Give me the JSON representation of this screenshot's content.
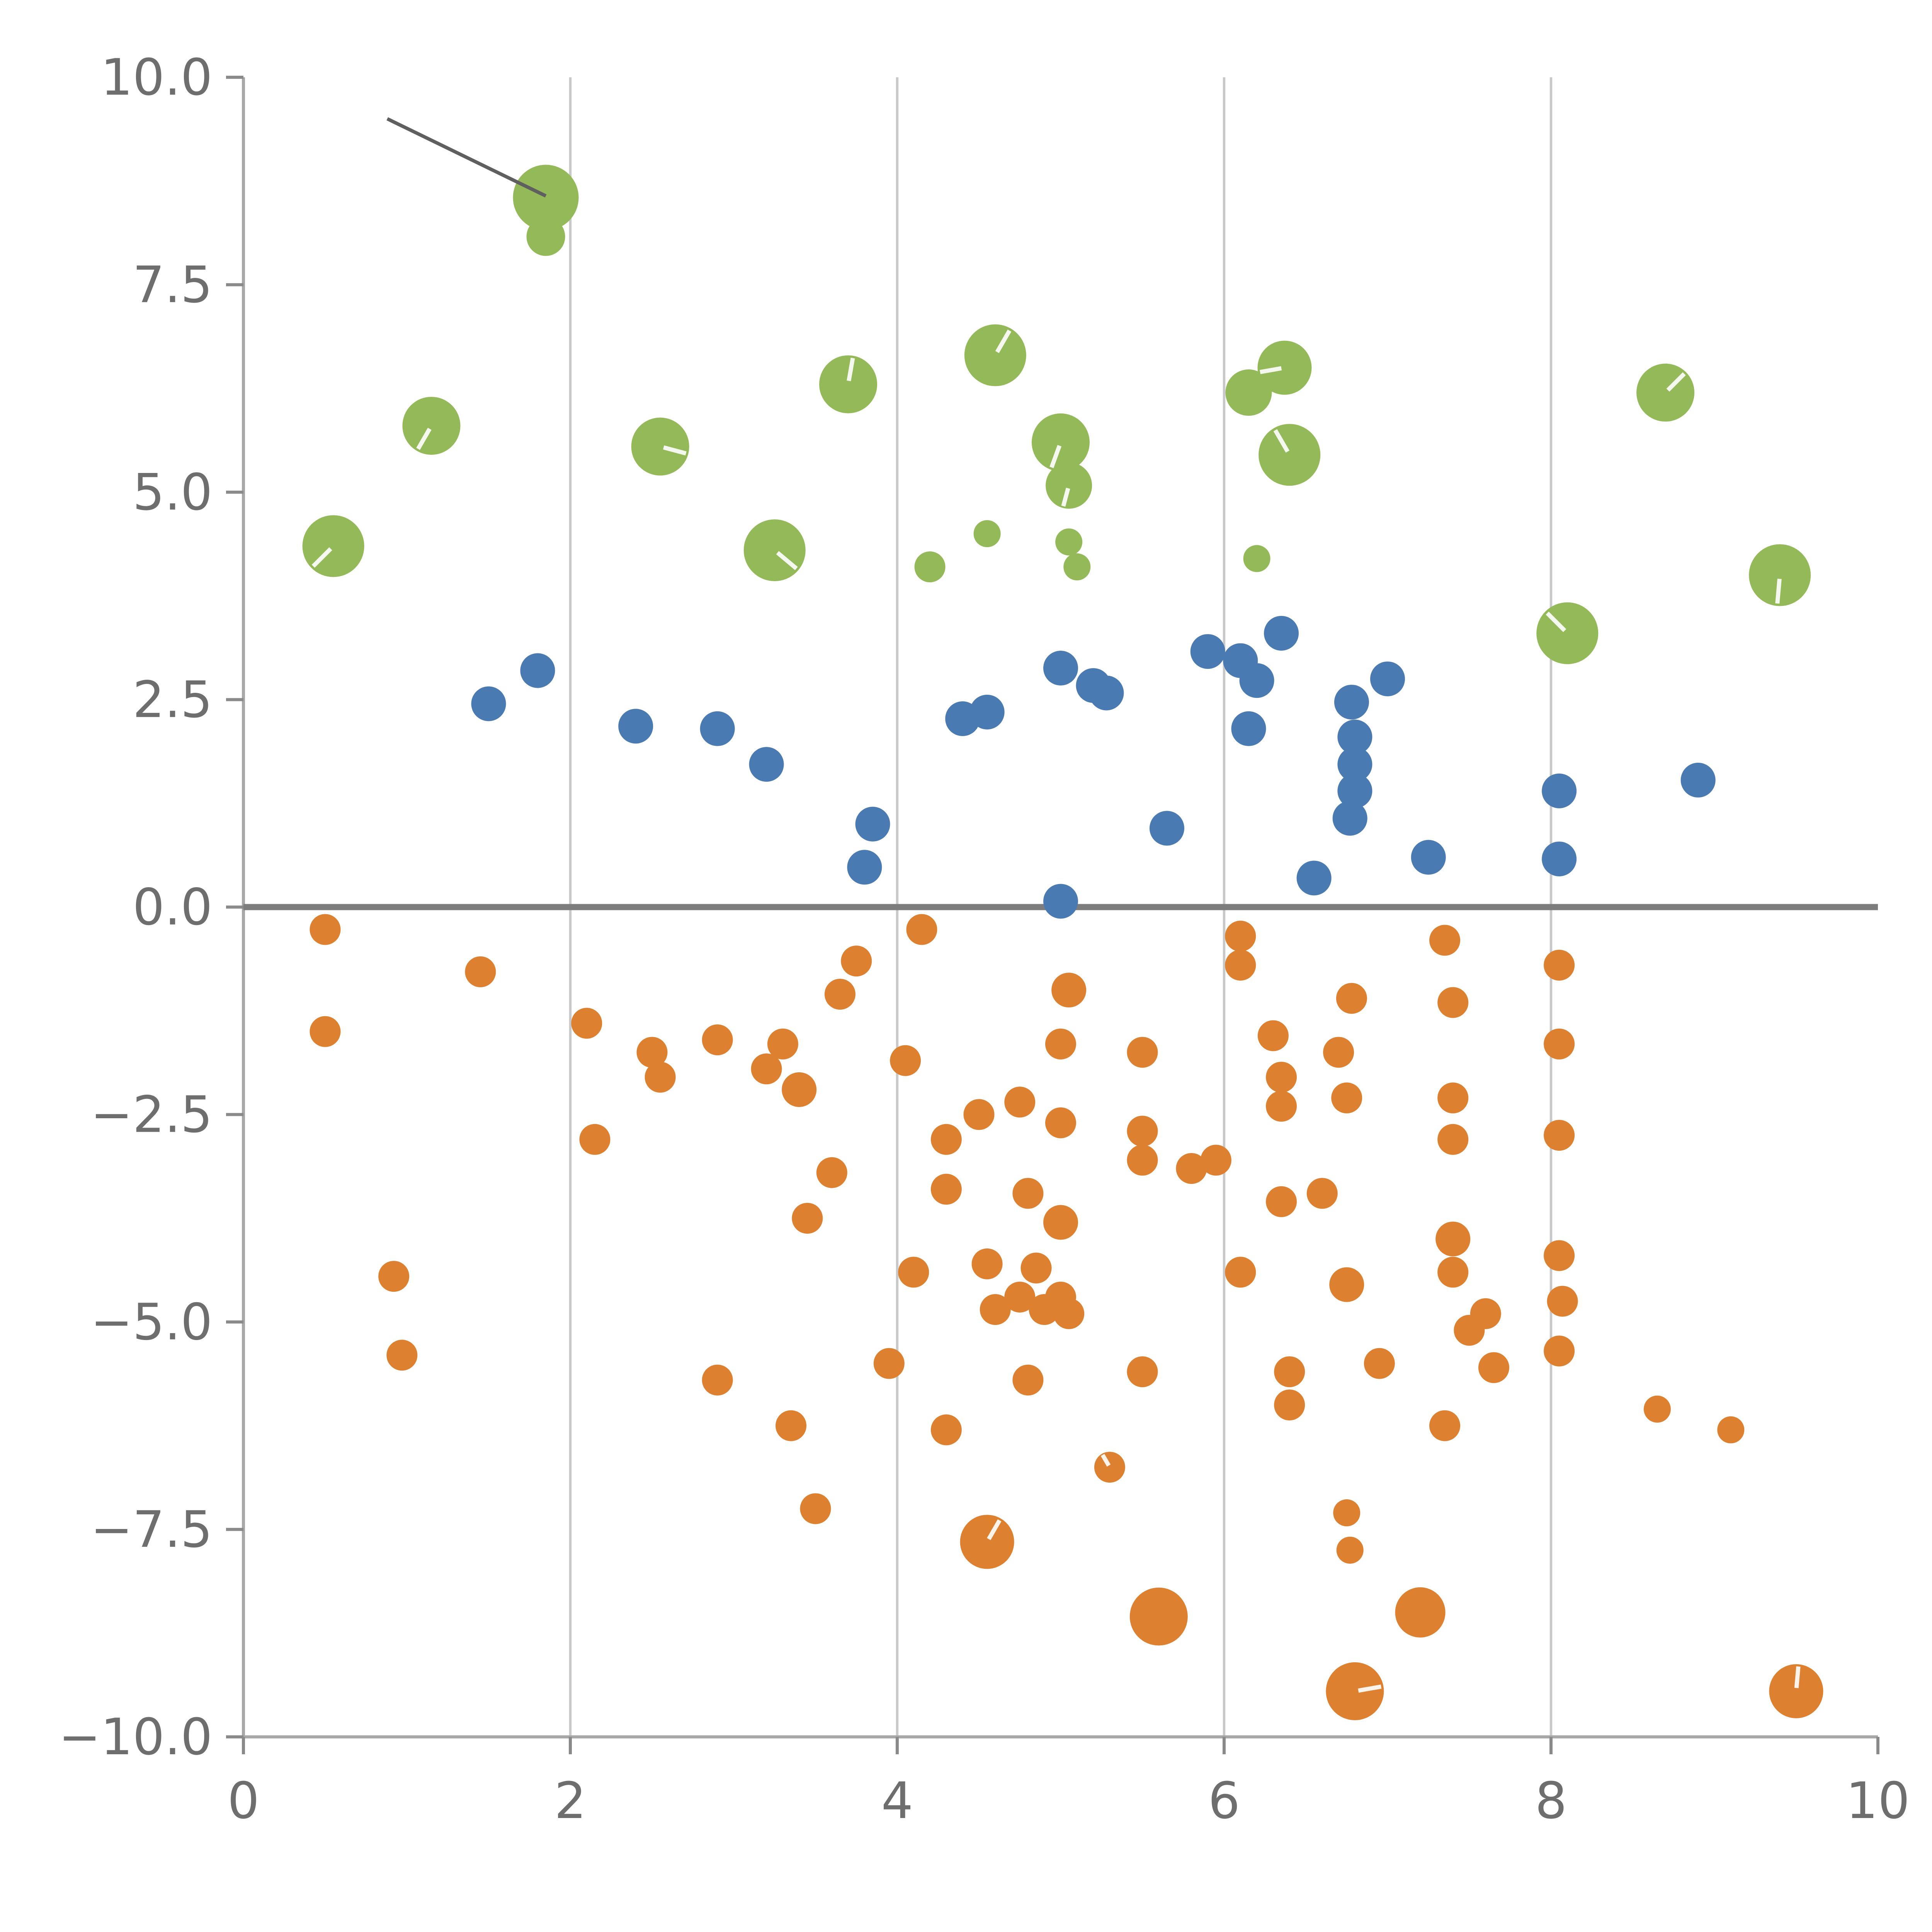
{
  "chart_data": {
    "type": "scatter",
    "title": "",
    "xlabel": "",
    "ylabel": "",
    "xlim": [
      0,
      10
    ],
    "ylim": [
      -10,
      10
    ],
    "x_ticks": [
      0,
      2,
      4,
      6,
      8,
      10
    ],
    "x_tick_labels": [
      "0",
      "2",
      "4",
      "6",
      "8",
      "10"
    ],
    "y_ticks": [
      -10,
      -7.5,
      -5,
      -2.5,
      0,
      2.5,
      5,
      7.5,
      10
    ],
    "y_tick_labels": [
      "−10.0",
      "−7.5",
      "−5.0",
      "−2.5",
      "0.0",
      "2.5",
      "5.0",
      "7.5",
      "10.0"
    ],
    "grid": {
      "vertical_at": [
        2,
        4,
        6,
        8
      ],
      "color": "#c9c9c9",
      "width": 1.3
    },
    "spine_color": "#a8a8a8",
    "tick_color": "#8a8a8a",
    "label_color": "#6e6e6e",
    "zero_line": {
      "y": 0,
      "color": "#7d7d7d",
      "width": 3.2
    },
    "annotation_line": {
      "x1": 0.88,
      "y1": 9.5,
      "x2": 1.85,
      "y2": 8.57,
      "color": "#5f5f5f",
      "width": 1.8
    },
    "legend": "none",
    "series": [
      {
        "name": "green",
        "color": "#94b958",
        "points": [
          [
            1.85,
            8.55,
            17
          ],
          [
            1.85,
            8.08,
            10
          ],
          [
            0.55,
            4.35,
            16,
            225
          ],
          [
            1.15,
            5.8,
            15,
            240
          ],
          [
            2.55,
            5.55,
            15,
            345
          ],
          [
            3.25,
            4.3,
            16,
            320
          ],
          [
            3.7,
            6.3,
            15,
            80
          ],
          [
            4.2,
            4.1,
            8
          ],
          [
            4.55,
            4.5,
            7
          ],
          [
            4.6,
            6.65,
            16,
            60
          ],
          [
            5.0,
            5.6,
            15,
            250
          ],
          [
            5.05,
            5.08,
            12,
            255
          ],
          [
            5.05,
            4.4,
            7
          ],
          [
            5.1,
            4.1,
            7
          ],
          [
            6.15,
            6.2,
            12
          ],
          [
            6.37,
            6.5,
            14,
            190
          ],
          [
            6.4,
            5.45,
            16,
            120
          ],
          [
            6.2,
            4.2,
            7
          ],
          [
            8.1,
            3.3,
            16,
            135
          ],
          [
            8.7,
            6.2,
            15,
            45
          ],
          [
            9.4,
            4.0,
            16,
            265
          ]
        ]
      },
      {
        "name": "blue",
        "color": "#4a7ab2",
        "points": [
          [
            1.5,
            2.45,
            9
          ],
          [
            1.8,
            2.85,
            9
          ],
          [
            2.4,
            2.18,
            9
          ],
          [
            2.9,
            2.15,
            9
          ],
          [
            3.2,
            1.72,
            9
          ],
          [
            3.85,
            1.0,
            9
          ],
          [
            3.8,
            0.48,
            9
          ],
          [
            4.4,
            2.27,
            9
          ],
          [
            4.55,
            2.35,
            9
          ],
          [
            5.0,
            2.88,
            9
          ],
          [
            5.2,
            2.67,
            9
          ],
          [
            5.28,
            2.58,
            9
          ],
          [
            5.0,
            0.07,
            9
          ],
          [
            5.65,
            0.95,
            9
          ],
          [
            5.9,
            3.08,
            9
          ],
          [
            6.1,
            2.97,
            9
          ],
          [
            6.2,
            2.73,
            9
          ],
          [
            6.15,
            2.15,
            9
          ],
          [
            6.35,
            3.3,
            9
          ],
          [
            6.55,
            0.35,
            9
          ],
          [
            6.78,
            2.47,
            9
          ],
          [
            6.8,
            2.05,
            9
          ],
          [
            6.8,
            1.72,
            9
          ],
          [
            6.8,
            1.4,
            9
          ],
          [
            6.77,
            1.07,
            9
          ],
          [
            7.0,
            2.75,
            9
          ],
          [
            7.25,
            0.6,
            9
          ],
          [
            8.05,
            1.4,
            9
          ],
          [
            8.05,
            0.58,
            9
          ],
          [
            8.9,
            1.53,
            9
          ]
        ]
      },
      {
        "name": "orange",
        "color": "#dd8130",
        "points": [
          [
            0.5,
            -0.27,
            8
          ],
          [
            0.5,
            -1.5,
            8
          ],
          [
            1.45,
            -0.78,
            8
          ],
          [
            0.92,
            -4.45,
            8
          ],
          [
            0.97,
            -5.4,
            8
          ],
          [
            2.1,
            -1.4,
            8
          ],
          [
            2.15,
            -2.8,
            8
          ],
          [
            2.5,
            -1.75,
            8
          ],
          [
            2.55,
            -2.05,
            8
          ],
          [
            2.9,
            -1.6,
            8
          ],
          [
            2.9,
            -5.7,
            8
          ],
          [
            3.2,
            -1.95,
            8
          ],
          [
            3.3,
            -1.65,
            8
          ],
          [
            3.4,
            -2.2,
            9
          ],
          [
            3.45,
            -3.75,
            8
          ],
          [
            3.35,
            -6.25,
            8
          ],
          [
            3.5,
            -7.25,
            8
          ],
          [
            3.6,
            -3.2,
            8
          ],
          [
            3.65,
            -1.05,
            8
          ],
          [
            3.75,
            -0.65,
            8
          ],
          [
            4.05,
            -1.85,
            8
          ],
          [
            4.15,
            -0.27,
            8
          ],
          [
            4.1,
            -4.4,
            8
          ],
          [
            4.3,
            -2.8,
            8
          ],
          [
            4.3,
            -3.4,
            8
          ],
          [
            3.95,
            -5.5,
            8
          ],
          [
            4.3,
            -6.3,
            8
          ],
          [
            4.5,
            -2.5,
            8
          ],
          [
            4.55,
            -4.3,
            8
          ],
          [
            4.6,
            -4.85,
            8
          ],
          [
            4.75,
            -4.7,
            8
          ],
          [
            4.75,
            -2.35,
            8
          ],
          [
            4.8,
            -3.45,
            8
          ],
          [
            4.85,
            -4.35,
            8
          ],
          [
            4.9,
            -4.85,
            8
          ],
          [
            5.0,
            -4.7,
            8
          ],
          [
            5.05,
            -4.9,
            8
          ],
          [
            5.0,
            -3.8,
            9
          ],
          [
            5.0,
            -2.6,
            8
          ],
          [
            5.0,
            -1.65,
            8
          ],
          [
            5.05,
            -1.0,
            9
          ],
          [
            4.8,
            -5.7,
            8
          ],
          [
            4.55,
            -7.65,
            14,
            60
          ],
          [
            5.3,
            -6.75,
            8,
            120
          ],
          [
            5.5,
            -1.75,
            8
          ],
          [
            5.5,
            -2.7,
            8
          ],
          [
            5.5,
            -3.05,
            8
          ],
          [
            5.5,
            -5.6,
            8
          ],
          [
            5.6,
            -8.55,
            15
          ],
          [
            5.8,
            -3.15,
            8
          ],
          [
            5.95,
            -3.05,
            8
          ],
          [
            6.1,
            -0.35,
            8
          ],
          [
            6.1,
            -0.7,
            8
          ],
          [
            6.1,
            -4.4,
            8
          ],
          [
            6.3,
            -1.55,
            8
          ],
          [
            6.35,
            -2.05,
            8
          ],
          [
            6.35,
            -2.4,
            8
          ],
          [
            6.35,
            -3.55,
            8
          ],
          [
            6.4,
            -5.6,
            8
          ],
          [
            6.4,
            -6.0,
            8
          ],
          [
            6.6,
            -3.45,
            8
          ],
          [
            6.7,
            -1.75,
            8
          ],
          [
            6.75,
            -2.3,
            8
          ],
          [
            6.75,
            -4.55,
            9
          ],
          [
            6.78,
            -1.1,
            8
          ],
          [
            6.75,
            -7.3,
            7
          ],
          [
            6.77,
            -7.75,
            7
          ],
          [
            6.8,
            -9.45,
            15,
            10
          ],
          [
            6.95,
            -5.5,
            8
          ],
          [
            7.2,
            -8.5,
            13
          ],
          [
            7.35,
            -0.4,
            8
          ],
          [
            7.4,
            -1.15,
            8
          ],
          [
            7.4,
            -2.3,
            8
          ],
          [
            7.4,
            -2.8,
            8
          ],
          [
            7.4,
            -4.0,
            9
          ],
          [
            7.4,
            -4.4,
            8
          ],
          [
            7.35,
            -6.25,
            8
          ],
          [
            7.5,
            -5.1,
            8
          ],
          [
            7.6,
            -4.9,
            8
          ],
          [
            7.65,
            -5.55,
            8
          ],
          [
            8.05,
            -0.7,
            8
          ],
          [
            8.05,
            -1.65,
            8
          ],
          [
            8.05,
            -2.75,
            8
          ],
          [
            8.05,
            -4.2,
            8
          ],
          [
            8.07,
            -4.75,
            8
          ],
          [
            8.05,
            -5.35,
            8
          ],
          [
            8.65,
            -6.05,
            7
          ],
          [
            9.1,
            -6.3,
            7
          ],
          [
            9.5,
            -9.45,
            14,
            85
          ]
        ]
      }
    ]
  }
}
